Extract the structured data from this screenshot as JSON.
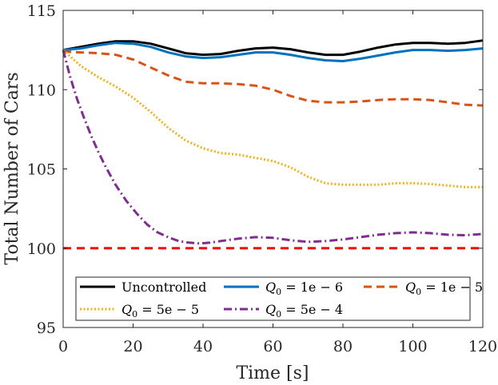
{
  "chart_data": {
    "type": "line",
    "title": "",
    "xlabel": "Time [s]",
    "ylabel": "Total Number of Cars",
    "xlim": [
      0,
      120
    ],
    "ylim": [
      95,
      115
    ],
    "xticks": [
      0,
      20,
      40,
      60,
      80,
      100,
      120
    ],
    "yticks": [
      95,
      100,
      105,
      110,
      115
    ],
    "xtick_labels": [
      "0",
      "20",
      "40",
      "60",
      "80",
      "100",
      "120"
    ],
    "ytick_labels": [
      "95",
      "100",
      "105",
      "110",
      "115"
    ],
    "grid": false,
    "legend_position": "bottom",
    "series": [
      {
        "name": "Uncontrolled",
        "legend_main": "Uncontrolled",
        "legend_sub": "",
        "legend_rest": "",
        "color": "#000000",
        "style": "solid",
        "x": [
          0,
          5,
          10,
          15,
          20,
          25,
          30,
          35,
          40,
          45,
          50,
          55,
          60,
          65,
          70,
          75,
          80,
          85,
          90,
          95,
          100,
          105,
          110,
          115,
          120
        ],
        "y": [
          112.5,
          112.7,
          112.9,
          113.05,
          113.05,
          112.9,
          112.6,
          112.3,
          112.2,
          112.25,
          112.45,
          112.6,
          112.65,
          112.55,
          112.35,
          112.2,
          112.2,
          112.4,
          112.65,
          112.85,
          112.95,
          112.95,
          112.9,
          112.95,
          113.1
        ]
      },
      {
        "name": "Q_0 = 1e-6",
        "legend_main": "Q",
        "legend_sub": "0",
        "legend_rest": " = 1e − 6",
        "color": "#0072BD",
        "style": "solid",
        "x": [
          0,
          5,
          10,
          15,
          20,
          25,
          30,
          35,
          40,
          45,
          50,
          55,
          60,
          65,
          70,
          75,
          80,
          85,
          90,
          95,
          100,
          105,
          110,
          115,
          120
        ],
        "y": [
          112.5,
          112.6,
          112.8,
          112.95,
          112.9,
          112.7,
          112.35,
          112.1,
          112.0,
          112.05,
          112.2,
          112.35,
          112.35,
          112.2,
          112.0,
          111.85,
          111.8,
          111.95,
          112.15,
          112.35,
          112.5,
          112.5,
          112.45,
          112.5,
          112.6
        ]
      },
      {
        "name": "Q_0 = 1e-5",
        "legend_main": "Q",
        "legend_sub": "0",
        "legend_rest": " = 1e − 5",
        "color": "#D95319",
        "style": "dashed",
        "x": [
          0,
          5,
          10,
          15,
          20,
          25,
          30,
          35,
          40,
          45,
          50,
          55,
          60,
          65,
          70,
          75,
          80,
          85,
          90,
          95,
          100,
          105,
          110,
          115,
          120
        ],
        "y": [
          112.4,
          112.35,
          112.3,
          112.2,
          111.9,
          111.4,
          110.9,
          110.5,
          110.4,
          110.4,
          110.35,
          110.25,
          110.0,
          109.6,
          109.3,
          109.2,
          109.2,
          109.25,
          109.35,
          109.4,
          109.4,
          109.35,
          109.2,
          109.05,
          109.0
        ]
      },
      {
        "name": "Q_0 = 5e-5",
        "legend_main": "Q",
        "legend_sub": "0",
        "legend_rest": " = 5e − 5",
        "color": "#EDB120",
        "style": "dotted",
        "x": [
          0,
          5,
          10,
          15,
          20,
          25,
          30,
          35,
          40,
          45,
          50,
          55,
          60,
          65,
          70,
          75,
          80,
          85,
          90,
          95,
          100,
          105,
          110,
          115,
          120
        ],
        "y": [
          112.5,
          111.5,
          110.8,
          110.2,
          109.5,
          108.6,
          107.6,
          106.8,
          106.3,
          106.0,
          105.9,
          105.7,
          105.5,
          105.1,
          104.5,
          104.1,
          104.0,
          104.0,
          104.0,
          104.1,
          104.1,
          104.05,
          103.95,
          103.85,
          103.85
        ]
      },
      {
        "name": "Q_0 = 5e-4",
        "legend_main": "Q",
        "legend_sub": "0",
        "legend_rest": " = 5e − 4",
        "color": "#7E2F8E",
        "style": "dashdot",
        "x": [
          0,
          2,
          4,
          6,
          8,
          10,
          12,
          15,
          18,
          21,
          24,
          27,
          30,
          33,
          36,
          39,
          42,
          45,
          50,
          55,
          60,
          65,
          70,
          75,
          80,
          85,
          90,
          95,
          100,
          105,
          110,
          115,
          120
        ],
        "y": [
          112.5,
          110.8,
          109.4,
          108.2,
          107.1,
          106.1,
          105.2,
          104.0,
          103.0,
          102.2,
          101.5,
          101.0,
          100.7,
          100.45,
          100.35,
          100.3,
          100.35,
          100.45,
          100.6,
          100.7,
          100.65,
          100.5,
          100.4,
          100.45,
          100.55,
          100.7,
          100.85,
          100.95,
          101.0,
          100.95,
          100.85,
          100.82,
          100.9
        ]
      }
    ],
    "reference_line": {
      "y": 100,
      "color": "#FF0000",
      "style": "dashed"
    }
  }
}
